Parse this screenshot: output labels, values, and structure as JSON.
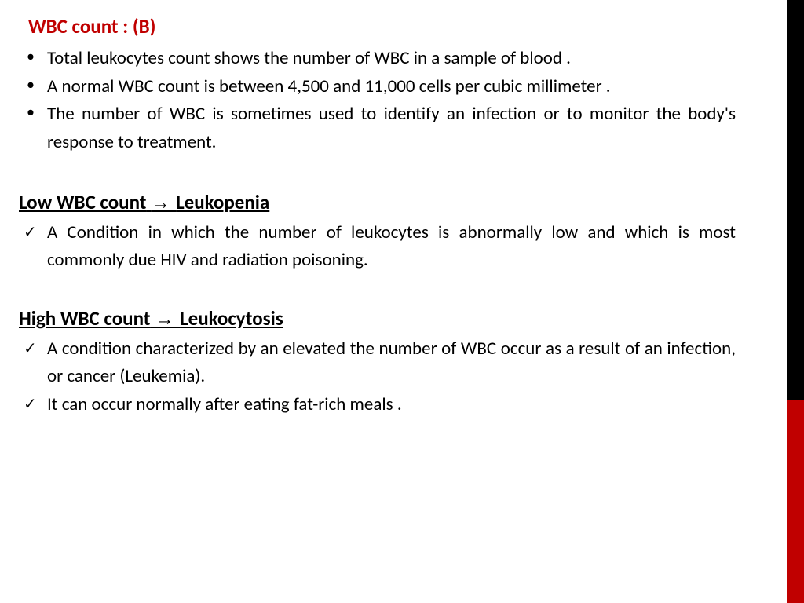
{
  "colors": {
    "title_color": "#c00000",
    "body_text_color": "#000000",
    "sidebar_black": "#000000",
    "sidebar_red": "#c00000",
    "background": "#ffffff"
  },
  "typography": {
    "title_fontsize": 25,
    "body_fontsize": 23,
    "heading_fontsize": 25,
    "font_family": "Calibri"
  },
  "title": {
    "prefix": "WBC count :",
    "label": "(B)"
  },
  "intro_bullets": [
    "Total leukocytes count shows the number of WBC in a sample  of blood .",
    "A normal WBC count is between 4,500 and 11,000 cells per cubic millimeter .",
    "The number of WBC is sometimes used to identify an infection or to monitor the body's response to treatment."
  ],
  "sections": [
    {
      "heading_left": "Low WBC count",
      "heading_right": "Leukopenia",
      "items": [
        "A Condition in which the number of leukocytes is abnormally low and which is most commonly due HIV and radiation poisoning."
      ]
    },
    {
      "heading_left": "High WBC count",
      "heading_right": "Leukocytosis",
      "items": [
        "A condition characterized by an elevated the number of WBC occur as a result of an infection, or cancer (Leukemia).",
        "It can occur normally after eating fat-rich meals ."
      ]
    }
  ]
}
